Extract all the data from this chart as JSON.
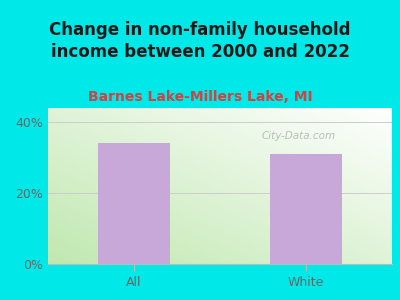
{
  "title": "Change in non-family household\nincome between 2000 and 2022",
  "subtitle": "Barnes Lake-Millers Lake, MI",
  "categories": [
    "All",
    "White"
  ],
  "values": [
    34,
    31
  ],
  "bar_color": "#c8a8d8",
  "background_color": "#00e8e8",
  "plot_bg_corner": "#c0e8b0",
  "plot_bg_center": "#f0f8ee",
  "plot_bg_white": "#ffffff",
  "title_color": "#1a1a1a",
  "subtitle_color": "#cc4444",
  "tick_label_color": "#666666",
  "ytick_labels": [
    "0%",
    "20%",
    "40%"
  ],
  "ytick_values": [
    0,
    20,
    40
  ],
  "ylim": [
    0,
    44
  ],
  "title_fontsize": 12,
  "subtitle_fontsize": 10,
  "watermark_text": "City-Data.com",
  "watermark_color": "#aaaaaa"
}
